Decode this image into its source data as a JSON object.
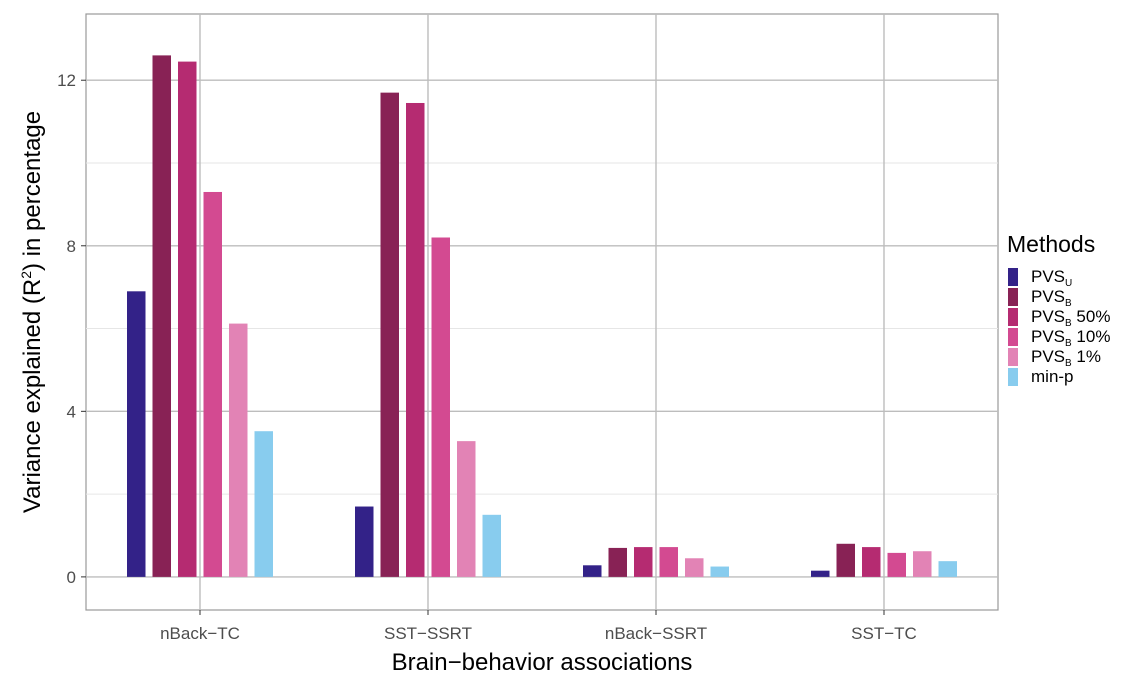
{
  "chart_data": {
    "type": "bar",
    "xlabel": "Brain−behavior associations",
    "ylabel": {
      "pre": "Variance explained (R",
      "sup": "2",
      "post": ") in percentage"
    },
    "categories": [
      "nBack−TC",
      "SST−SSRT",
      "nBack−SSRT",
      "SST−TC"
    ],
    "ylim": [
      -0.8,
      13.6
    ],
    "yticks": [
      0,
      4,
      8,
      12
    ],
    "yticks_minor": [
      2,
      6,
      10
    ],
    "grid": true,
    "legend_position": "right",
    "legend_title": "Methods",
    "series": [
      {
        "name": "PVS",
        "sub": "U",
        "suffix": "",
        "color": "#332288",
        "values": [
          6.9,
          1.7,
          0.28,
          0.15
        ]
      },
      {
        "name": "PVS",
        "sub": "B",
        "suffix": "",
        "color": "#882255",
        "values": [
          12.6,
          11.7,
          0.7,
          0.8
        ]
      },
      {
        "name": "PVS",
        "sub": "B",
        "suffix": " 50%",
        "color": "#B52B71",
        "values": [
          12.45,
          11.45,
          0.72,
          0.72
        ]
      },
      {
        "name": "PVS",
        "sub": "B",
        "suffix": " 10%",
        "color": "#D34A91",
        "values": [
          9.3,
          8.2,
          0.72,
          0.58
        ]
      },
      {
        "name": "PVS",
        "sub": "B",
        "suffix": " 1%",
        "color": "#E283B5",
        "values": [
          6.12,
          3.28,
          0.45,
          0.62
        ]
      },
      {
        "name": "min-p",
        "sub": "",
        "suffix": "",
        "color": "#88CCEE",
        "values": [
          3.52,
          1.5,
          0.25,
          0.38
        ]
      }
    ]
  }
}
